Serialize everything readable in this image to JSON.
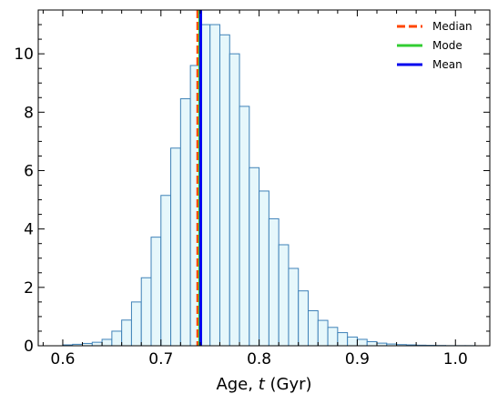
{
  "chart_data": {
    "type": "histogram",
    "xlabel_prefix": "Age, ",
    "xlabel_var": "t",
    "xlabel_suffix": " (Gyr)",
    "ylabel": "",
    "xlim": [
      0.575,
      1.035
    ],
    "ylim": [
      0,
      11.5
    ],
    "xticks": [
      0.6,
      0.7,
      0.8,
      0.9,
      1.0
    ],
    "xtick_labels": [
      "0.6",
      "0.7",
      "0.8",
      "0.9",
      "1.0"
    ],
    "yticks": [
      0,
      2,
      4,
      6,
      8,
      10
    ],
    "ytick_labels": [
      "0",
      "2",
      "4",
      "6",
      "8",
      "10"
    ],
    "bin_start": 0.6,
    "bin_width": 0.01,
    "bar_fill": "#e6f7fb",
    "bar_edge": "#3f82b8",
    "counts": [
      0.03,
      0.05,
      0.08,
      0.12,
      0.22,
      0.5,
      0.88,
      1.5,
      2.33,
      3.72,
      5.15,
      6.77,
      8.46,
      9.6,
      11.0,
      11.0,
      10.65,
      10.0,
      8.2,
      6.1,
      5.3,
      4.35,
      3.46,
      2.65,
      1.88,
      1.2,
      0.87,
      0.63,
      0.45,
      0.3,
      0.22,
      0.14,
      0.09,
      0.06,
      0.04,
      0.03,
      0.02,
      0.015,
      0.01,
      0.005,
      0.005,
      0.005
    ],
    "lines": [
      {
        "name": "Median",
        "x": 0.7375,
        "color": "#ff4500",
        "style": "dashed"
      },
      {
        "name": "Mode",
        "x": 0.7395,
        "color": "#32cd32",
        "style": "solid"
      },
      {
        "name": "Mean",
        "x": 0.7405,
        "color": "#0000ee",
        "style": "solid"
      }
    ],
    "legend_position": "top-right",
    "grid": false
  }
}
